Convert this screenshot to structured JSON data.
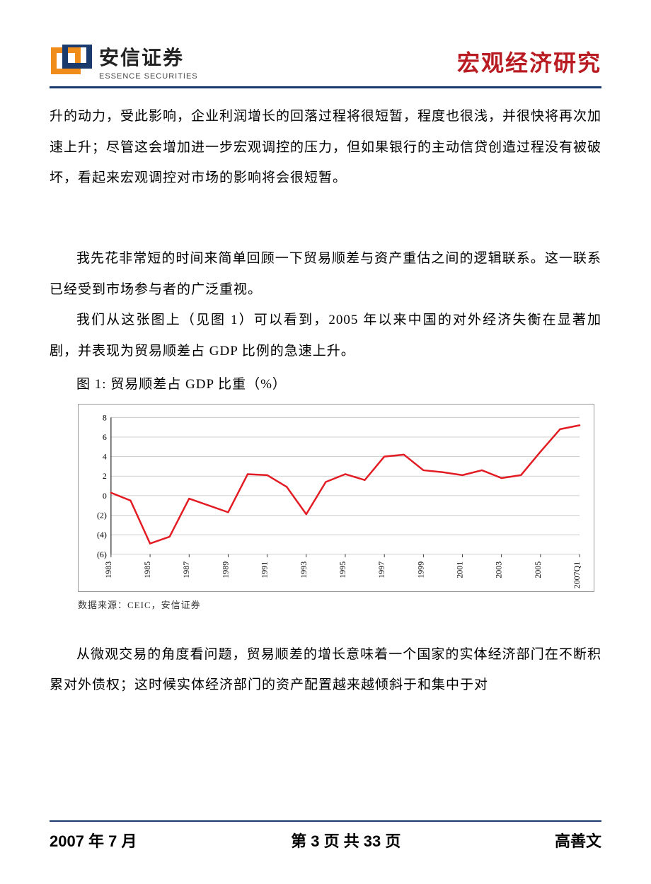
{
  "header": {
    "logo": {
      "orange": "#f08c1a",
      "blue": "#1a3a6e",
      "company_cn": "安信证券",
      "company_en": "ESSENCE SECURITIES"
    },
    "doc_type": "宏观经济研究",
    "doc_type_color": "#b81c22",
    "rule_color": "#1a3a6e"
  },
  "body": {
    "para1": "升的动力，受此影响，企业利润增长的回落过程将很短暂，程度也很浅，并很快将再次加速上升；尽管这会增加进一步宏观调控的压力，但如果银行的主动信贷创造过程没有被破坏，看起来宏观调控对市场的影响将会很短暂。",
    "para2": "我先花非常短的时间来简单回顾一下贸易顺差与资产重估之间的逻辑联系。这一联系已经受到市场参与者的广泛重视。",
    "para3": "我们从这张图上（见图 1）可以看到，2005 年以来中国的对外经济失衡在显著加剧，并表现为贸易顺差占 GDP 比例的急速上升。",
    "para4": "从微观交易的角度看问题，贸易顺差的增长意味着一个国家的实体经济部门在不断积累对外债权；这时候实体经济部门的资产配置越来越倾斜于和集中于对"
  },
  "figure1": {
    "title": "图 1: 贸易顺差占 GDP 比重（%）",
    "source": "数据来源：CEIC，安信证券",
    "chart": {
      "type": "line",
      "line_color": "#e31b23",
      "line_width": 2.5,
      "grid_color": "#bfbfbf",
      "axis_color": "#000000",
      "background_color": "#ffffff",
      "tick_fontsize": 12,
      "tick_font": "Times New Roman, serif",
      "ylim": [
        -6,
        8
      ],
      "ytick_step": 2,
      "yticks": [
        {
          "v": 8,
          "label": "8"
        },
        {
          "v": 6,
          "label": "6"
        },
        {
          "v": 4,
          "label": "4"
        },
        {
          "v": 2,
          "label": "2"
        },
        {
          "v": 0,
          "label": "0"
        },
        {
          "v": -2,
          "label": "(2)"
        },
        {
          "v": -4,
          "label": "(4)"
        },
        {
          "v": -6,
          "label": "(6)"
        }
      ],
      "x_labels": [
        "1983",
        "1985",
        "1987",
        "1989",
        "1991",
        "1993",
        "1995",
        "1997",
        "1999",
        "2001",
        "2003",
        "2005",
        "2007Q1"
      ],
      "x_label_rotation": -90,
      "years": [
        1983,
        1984,
        1985,
        1986,
        1987,
        1988,
        1989,
        1990,
        1991,
        1992,
        1993,
        1994,
        1995,
        1996,
        1997,
        1998,
        1999,
        2000,
        2001,
        2002,
        2003,
        2004,
        2005,
        2006,
        2007
      ],
      "values": [
        0.3,
        -0.5,
        -4.9,
        -4.2,
        -0.3,
        -1.0,
        -1.7,
        2.2,
        2.1,
        0.9,
        -1.9,
        1.4,
        2.2,
        1.6,
        4.0,
        4.2,
        2.6,
        2.4,
        2.1,
        2.6,
        1.8,
        2.1,
        4.5,
        6.8,
        7.2
      ]
    }
  },
  "footer": {
    "date": "2007 年 7 月",
    "page": "第 3 页 共 33 页",
    "author": "高善文"
  }
}
